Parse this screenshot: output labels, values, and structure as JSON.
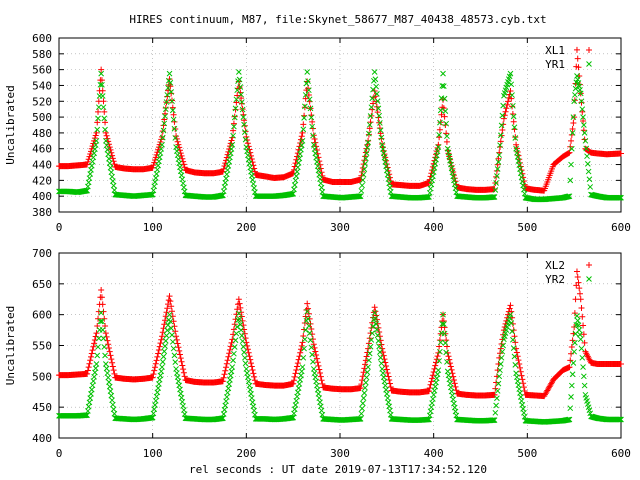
{
  "figure": {
    "title": "HIRES continuum, M87, file:Skynet_58677_M87_40438_48573.cyb.txt",
    "xlabel": "rel seconds : UT date 2019-07-13T17:34:52.120"
  },
  "colors": {
    "red": "#ff0000",
    "green": "#00c000",
    "axis": "#000000",
    "grid": "#a0a0a0"
  },
  "chart_data": [
    {
      "type": "scatter",
      "ylabel": "Uncalibrated",
      "xlim": [
        0,
        600
      ],
      "ylim": [
        380,
        600
      ],
      "xticks": [
        0,
        100,
        200,
        300,
        400,
        500,
        600
      ],
      "yticks": [
        380,
        400,
        420,
        440,
        460,
        480,
        500,
        520,
        540,
        560,
        580,
        600
      ],
      "grid": true,
      "legend": "top-right",
      "series": [
        {
          "name": "XL1",
          "marker": "+",
          "color": "#ff0000",
          "x": [
            0,
            10,
            20,
            30,
            40,
            45,
            50,
            60,
            70,
            80,
            90,
            100,
            110,
            118,
            125,
            135,
            145,
            155,
            165,
            175,
            185,
            192,
            200,
            210,
            220,
            230,
            240,
            250,
            260,
            265,
            272,
            282,
            292,
            302,
            312,
            322,
            330,
            337,
            345,
            355,
            365,
            375,
            385,
            395,
            405,
            410,
            415,
            425,
            435,
            445,
            455,
            465,
            470,
            475,
            482,
            488,
            498,
            508,
            518,
            528,
            538,
            545,
            550,
            553,
            557,
            562,
            568,
            575,
            585,
            600
          ],
          "y": [
            438,
            438,
            439,
            440,
            480,
            560,
            480,
            437,
            435,
            434,
            434,
            436,
            475,
            548,
            476,
            433,
            430,
            429,
            429,
            431,
            474,
            545,
            475,
            427,
            425,
            423,
            424,
            429,
            480,
            545,
            477,
            421,
            418,
            418,
            418,
            421,
            470,
            533,
            466,
            415,
            414,
            413,
            413,
            417,
            465,
            522,
            458,
            411,
            409,
            408,
            408,
            409,
            455,
            498,
            533,
            465,
            410,
            408,
            407,
            440,
            450,
            455,
            500,
            585,
            530,
            460,
            455,
            454,
            453,
            454
          ]
        },
        {
          "name": "YR1",
          "marker": "x",
          "color": "#00c000",
          "x": [
            0,
            10,
            20,
            30,
            40,
            45,
            50,
            60,
            70,
            80,
            90,
            100,
            110,
            118,
            125,
            135,
            145,
            155,
            165,
            175,
            185,
            192,
            200,
            210,
            220,
            230,
            240,
            250,
            260,
            265,
            272,
            282,
            292,
            302,
            312,
            322,
            330,
            337,
            345,
            355,
            365,
            375,
            385,
            395,
            405,
            410,
            415,
            425,
            435,
            445,
            455,
            465,
            470,
            475,
            482,
            488,
            498,
            508,
            518,
            528,
            538,
            545,
            550,
            553,
            557,
            562,
            568,
            575,
            585,
            600
          ],
          "y": [
            406,
            406,
            405,
            407,
            470,
            555,
            470,
            402,
            401,
            400,
            401,
            402,
            465,
            555,
            462,
            401,
            400,
            399,
            399,
            401,
            465,
            557,
            462,
            400,
            400,
            400,
            401,
            403,
            470,
            557,
            465,
            400,
            399,
            398,
            399,
            400,
            468,
            557,
            465,
            400,
            399,
            398,
            398,
            399,
            462,
            555,
            460,
            400,
            399,
            398,
            398,
            399,
            452,
            527,
            555,
            460,
            398,
            396,
            396,
            397,
            398,
            400,
            520,
            552,
            530,
            470,
            402,
            400,
            398,
            398
          ]
        }
      ]
    },
    {
      "type": "scatter",
      "ylabel": "Uncalibrated",
      "xlim": [
        0,
        600
      ],
      "ylim": [
        400,
        700
      ],
      "xticks": [
        0,
        100,
        200,
        300,
        400,
        500,
        600
      ],
      "yticks": [
        400,
        450,
        500,
        550,
        600,
        650,
        700
      ],
      "grid": true,
      "legend": "top-right",
      "series": [
        {
          "name": "XL2",
          "marker": "+",
          "color": "#ff0000",
          "x": [
            0,
            10,
            20,
            30,
            40,
            45,
            50,
            60,
            70,
            80,
            90,
            100,
            110,
            118,
            125,
            135,
            145,
            155,
            165,
            175,
            185,
            192,
            200,
            210,
            220,
            230,
            240,
            250,
            260,
            265,
            272,
            282,
            292,
            302,
            312,
            322,
            330,
            337,
            345,
            355,
            365,
            375,
            385,
            395,
            405,
            410,
            415,
            425,
            435,
            445,
            455,
            465,
            470,
            475,
            482,
            488,
            498,
            508,
            518,
            528,
            538,
            545,
            550,
            553,
            557,
            562,
            568,
            575,
            585,
            600
          ],
          "y": [
            502,
            502,
            503,
            504,
            570,
            640,
            570,
            498,
            496,
            495,
            496,
            498,
            565,
            630,
            565,
            494,
            491,
            490,
            490,
            492,
            560,
            625,
            555,
            488,
            486,
            485,
            485,
            488,
            555,
            618,
            552,
            482,
            480,
            479,
            479,
            481,
            545,
            612,
            545,
            477,
            475,
            474,
            474,
            476,
            538,
            600,
            538,
            472,
            470,
            469,
            469,
            470,
            530,
            575,
            615,
            545,
            470,
            469,
            468,
            495,
            510,
            515,
            580,
            670,
            625,
            540,
            522,
            520,
            520,
            520
          ]
        },
        {
          "name": "YR2",
          "marker": "x",
          "color": "#00c000",
          "x": [
            0,
            10,
            20,
            30,
            40,
            45,
            50,
            60,
            70,
            80,
            90,
            100,
            110,
            118,
            125,
            135,
            145,
            155,
            165,
            175,
            185,
            192,
            200,
            210,
            220,
            230,
            240,
            250,
            260,
            265,
            272,
            282,
            292,
            302,
            312,
            322,
            330,
            337,
            345,
            355,
            365,
            375,
            385,
            395,
            405,
            410,
            415,
            425,
            435,
            445,
            455,
            465,
            470,
            475,
            482,
            488,
            498,
            508,
            518,
            528,
            538,
            545,
            550,
            553,
            557,
            562,
            568,
            575,
            585,
            600
          ],
          "y": [
            436,
            436,
            436,
            437,
            520,
            603,
            520,
            432,
            431,
            430,
            431,
            433,
            515,
            600,
            512,
            432,
            431,
            430,
            430,
            432,
            515,
            602,
            512,
            431,
            431,
            430,
            431,
            433,
            515,
            605,
            512,
            431,
            430,
            429,
            430,
            431,
            515,
            603,
            512,
            431,
            430,
            429,
            429,
            430,
            510,
            600,
            508,
            430,
            429,
            428,
            428,
            429,
            500,
            560,
            600,
            505,
            428,
            427,
            426,
            427,
            428,
            430,
            540,
            598,
            560,
            470,
            435,
            432,
            430,
            430
          ]
        }
      ]
    }
  ]
}
